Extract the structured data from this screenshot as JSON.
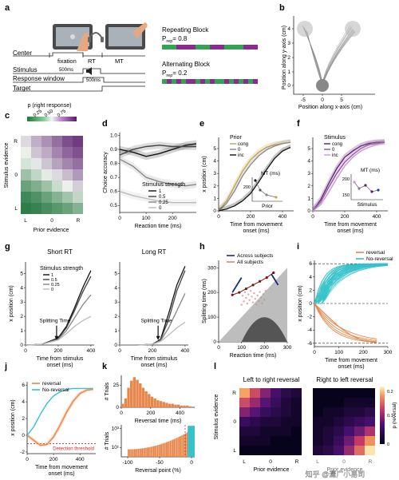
{
  "panel_letters": [
    "a",
    "b",
    "c",
    "d",
    "e",
    "f",
    "g",
    "h",
    "i",
    "j",
    "k",
    "l"
  ],
  "panel_a": {
    "rows": [
      "Center",
      "Stimulus",
      "Response window",
      "Target"
    ],
    "phases": [
      "fixation",
      "RT",
      "MT"
    ],
    "durations": [
      "500ms",
      "500ms"
    ],
    "repeating": {
      "title": "Repeating Block",
      "p": "P",
      "sub": "rep",
      "value": "= 0.8"
    },
    "alternating": {
      "title": "Alternating Block",
      "p": "P",
      "sub": "rep",
      "value": "= 0.2"
    }
  },
  "panel_b": {
    "ylabel": "Position along y-axis (cm)",
    "xlabel": "Position along x-axis (cm)",
    "xticks": [
      "-5",
      "0",
      "5"
    ],
    "yticks": [
      "0",
      "1",
      "2",
      "3",
      "4"
    ]
  },
  "panel_c": {
    "cbar_title": "p (right response)",
    "cbar_ticks": [
      "0.25",
      "0.50",
      "0.75"
    ],
    "ylabel": "Stimulus evidence",
    "xlabel": "Prior evidence",
    "yticks": [
      "R",
      "0",
      "L"
    ],
    "xticks": [
      "L",
      "0",
      "R"
    ]
  },
  "panel_d": {
    "ylabel": "Choice accuracy",
    "xlabel": "Reaction time (ms)",
    "yticks": [
      "0.5",
      "0.6",
      "0.7",
      "0.8",
      "0.9",
      "1.0"
    ],
    "xticks": [
      "0",
      "100",
      "200"
    ],
    "legend_title": "Stimulus strength",
    "legend": [
      "1",
      "0.5",
      "0.25",
      "0"
    ]
  },
  "panel_e": {
    "ylabel": "x position (cm)",
    "xlabel": "Time from movement onset (ms)",
    "yticks": [
      "0",
      "1",
      "2",
      "3",
      "4",
      "5"
    ],
    "xticks": [
      "0",
      "200",
      "400"
    ],
    "legend_title": "Prior",
    "legend": [
      "cong",
      "0",
      "inc"
    ],
    "inset_title": "MT (ms)",
    "inset_xlabel": "Prior",
    "inset_ytick": "200"
  },
  "panel_f": {
    "xlabel": "Time from movement onset (ms)",
    "yticks": [
      "0",
      "1",
      "2",
      "3",
      "4",
      "5"
    ],
    "xticks": [
      "0",
      "200",
      "400"
    ],
    "legend_title": "Stimulus",
    "legend": [
      "cong",
      "0",
      "inc"
    ],
    "inset_title": "MT (ms)",
    "inset_xlabel": "Stimulus",
    "inset_yticks": [
      "150",
      "200"
    ]
  },
  "panel_g": {
    "left_title": "Short RT",
    "right_title": "Long RT",
    "ylabel": "x position (cm)",
    "xlabel": "Time from stimulus onset (ms)",
    "yticks": [
      "0",
      "1",
      "2",
      "3",
      "4",
      "5"
    ],
    "xticks": [
      "0",
      "200",
      "400"
    ],
    "legend_title": "Stimulus strength",
    "legend": [
      "1",
      "0.5",
      "0.25",
      "0"
    ],
    "annotation": "Splitting Time"
  },
  "panel_h": {
    "ylabel": "Splitting time (ms)",
    "xlabel": "Reaction time (ms)",
    "yticks": [
      "0",
      "100",
      "200",
      "300"
    ],
    "xticks": [
      "0",
      "100",
      "200",
      "300"
    ],
    "legend": [
      "Across subjects",
      "All subjects"
    ]
  },
  "panel_i": {
    "ylabel": "x position (cm)",
    "xlabel": "Time from movement onset (ms)",
    "yticks": [
      "-6",
      "-4",
      "-2",
      "0",
      "2",
      "4",
      "6"
    ],
    "xticks": [
      "0",
      "100",
      "200",
      "300"
    ],
    "legend": [
      "reversal",
      "No-reversal"
    ]
  },
  "panel_j": {
    "ylabel": "x position (cm)",
    "xlabel": "Time from movement onset (ms)",
    "yticks": [
      "-2",
      "0",
      "2",
      "4",
      "6"
    ],
    "xticks": [
      "0",
      "200",
      "400"
    ],
    "legend": [
      "reversal",
      "No-reversal"
    ],
    "threshold": "Detection threshold"
  },
  "panel_k": {
    "top_ylabel": "# Trials",
    "top_xlabel": "Reversal time (ms)",
    "top_xticks": [
      "0",
      "200",
      "400"
    ],
    "top_yticks": [
      "0",
      "25"
    ],
    "bottom_ylabel": "# Trials",
    "bottom_xlabel": "Reversal point (%)",
    "bottom_xticks": [
      "-100",
      "-50",
      "0"
    ],
    "bottom_yticks": [
      "10¹",
      "10³"
    ]
  },
  "panel_l": {
    "left_title": "Left to right reversal",
    "right_title": "Right to left reversal",
    "ylabel": "Stimulus evidence",
    "xlabel": "Prior evidence",
    "yticks": [
      "R",
      "0",
      "L"
    ],
    "xticks": [
      "L",
      "0",
      "R"
    ],
    "cbar_label": "p (reversal)",
    "cbar_ticks": [
      "0",
      "0.1",
      "0.2"
    ]
  },
  "watermark": "知乎 @潇广小易司",
  "chart_data": [
    {
      "type": "heatmap",
      "title": "",
      "xlabel": "Prior evidence",
      "ylabel": "Stimulus evidence",
      "values": [
        [
          0.55,
          0.65,
          0.72,
          0.8,
          0.88,
          0.92
        ],
        [
          0.5,
          0.6,
          0.66,
          0.75,
          0.82,
          0.87
        ],
        [
          0.45,
          0.52,
          0.6,
          0.68,
          0.75,
          0.8
        ],
        [
          0.32,
          0.4,
          0.48,
          0.55,
          0.62,
          0.7
        ],
        [
          0.2,
          0.25,
          0.32,
          0.42,
          0.5,
          0.58
        ],
        [
          0.1,
          0.14,
          0.2,
          0.26,
          0.33,
          0.4
        ],
        [
          0.06,
          0.08,
          0.12,
          0.16,
          0.2,
          0.26
        ]
      ]
    },
    {
      "type": "line",
      "xlabel": "Reaction time (ms)",
      "ylabel": "Choice accuracy",
      "x": [
        0,
        50,
        100,
        150,
        200,
        250,
        290
      ],
      "series": [
        {
          "name": "1",
          "values": [
            0.9,
            0.88,
            0.85,
            0.87,
            0.9,
            0.93,
            0.94
          ]
        },
        {
          "name": "0.5",
          "values": [
            0.86,
            0.9,
            0.92,
            0.93,
            0.92,
            0.92,
            0.92
          ]
        },
        {
          "name": "0.25",
          "values": [
            0.83,
            0.78,
            0.7,
            0.67,
            0.65,
            0.64,
            0.65
          ]
        },
        {
          "name": "0",
          "values": [
            0.6,
            0.57,
            0.55,
            0.53,
            0.52,
            0.52,
            0.52
          ]
        }
      ]
    },
    {
      "type": "line",
      "xlabel": "Time from movement onset (ms)",
      "ylabel": "x position (cm)",
      "x": [
        0,
        50,
        100,
        150,
        200,
        250,
        300,
        350,
        400,
        450
      ],
      "series": [
        {
          "name": "cong",
          "values": [
            0,
            0.8,
            2.0,
            3.2,
            4.1,
            4.7,
            5.1,
            5.3,
            5.4,
            5.5
          ]
        },
        {
          "name": "0",
          "values": [
            0,
            0.6,
            1.6,
            2.8,
            3.7,
            4.4,
            4.9,
            5.2,
            5.4,
            5.5
          ]
        },
        {
          "name": "inc",
          "values": [
            0,
            0.15,
            0.4,
            0.8,
            1.4,
            2.3,
            3.3,
            4.2,
            4.8,
            5.1
          ]
        }
      ]
    },
    {
      "type": "line",
      "xlabel": "Time from movement onset (ms)",
      "ylabel": "x position (cm)",
      "x": [
        0,
        50,
        100,
        150,
        200,
        250,
        300,
        350,
        400,
        450
      ],
      "series": [
        {
          "name": "cong",
          "values": [
            0,
            0.9,
            2.2,
            3.4,
            4.3,
            4.8,
            5.2,
            5.4,
            5.5,
            5.5
          ]
        },
        {
          "name": "0",
          "values": [
            0,
            0.7,
            1.9,
            3.0,
            3.9,
            4.5,
            5.0,
            5.3,
            5.4,
            5.5
          ]
        },
        {
          "name": "inc",
          "values": [
            0,
            0.5,
            1.5,
            2.6,
            3.6,
            4.3,
            4.8,
            5.1,
            5.3,
            5.4
          ]
        }
      ]
    },
    {
      "type": "line",
      "title": "Short RT",
      "xlabel": "Time from stimulus onset (ms)",
      "ylabel": "x position (cm)",
      "x": [
        0,
        100,
        200,
        250,
        300,
        350,
        400
      ],
      "series": [
        {
          "name": "1",
          "values": [
            0,
            0.05,
            0.5,
            1.3,
            2.6,
            4.0,
            5.2
          ]
        },
        {
          "name": "0.5",
          "values": [
            0,
            0.05,
            0.45,
            1.2,
            2.4,
            3.7,
            4.8
          ]
        },
        {
          "name": "0.25",
          "values": [
            0,
            0.05,
            0.4,
            1.0,
            1.9,
            2.8,
            3.5
          ]
        },
        {
          "name": "0",
          "values": [
            0,
            0.05,
            0.35,
            0.8,
            1.3,
            1.7,
            2.0
          ]
        }
      ]
    },
    {
      "type": "line",
      "title": "Long RT",
      "xlabel": "Time from stimulus onset (ms)",
      "ylabel": "x position (cm)",
      "x": [
        0,
        100,
        200,
        250,
        300,
        350,
        400
      ],
      "series": [
        {
          "name": "1",
          "values": [
            0,
            0,
            0.05,
            0.4,
            2.2,
            4.2,
            5.5
          ]
        },
        {
          "name": "0.5",
          "values": [
            0,
            0,
            0.05,
            0.35,
            1.8,
            3.8,
            5.2
          ]
        },
        {
          "name": "0.25",
          "values": [
            0,
            0,
            0.05,
            0.3,
            1.2,
            2.4,
            3.6
          ]
        },
        {
          "name": "0",
          "values": [
            0,
            0,
            0.05,
            0.25,
            0.7,
            1.2,
            1.6
          ]
        }
      ]
    },
    {
      "type": "scatter",
      "xlabel": "Reaction time (ms)",
      "ylabel": "Splitting time (ms)",
      "x": [
        60,
        90,
        120,
        150,
        180,
        210,
        240
      ],
      "series": [
        {
          "name": "Across subjects",
          "values": [
            190,
            200,
            215,
            230,
            245,
            260,
            280
          ]
        }
      ]
    },
    {
      "type": "line",
      "xlabel": "Time from movement onset (ms)",
      "ylabel": "x position (cm)",
      "x": [
        0,
        50,
        100,
        150,
        200,
        250
      ],
      "series": [
        {
          "name": "reversal",
          "values": [
            0,
            -1.8,
            -3.5,
            -4.8,
            -5.6,
            -5.9
          ]
        },
        {
          "name": "No-reversal",
          "values": [
            0,
            2.0,
            4.5,
            5.5,
            5.8,
            5.9
          ]
        }
      ]
    },
    {
      "type": "line",
      "xlabel": "Time from movement onset (ms)",
      "ylabel": "x position (cm)",
      "x": [
        0,
        50,
        100,
        150,
        200,
        250,
        300,
        350,
        400,
        450,
        500
      ],
      "series": [
        {
          "name": "reversal",
          "values": [
            0,
            -0.6,
            -1.2,
            -1.1,
            -0.2,
            1.2,
            2.8,
            4.1,
            5.0,
            5.4,
            5.5
          ]
        },
        {
          "name": "No-reversal",
          "values": [
            0,
            1.0,
            2.5,
            3.8,
            4.7,
            5.2,
            5.5,
            5.6,
            5.6,
            5.6,
            5.6
          ]
        }
      ]
    },
    {
      "type": "bar",
      "xlabel": "Reversal time (ms)",
      "ylabel": "# Trials",
      "categories": [
        "20",
        "40",
        "60",
        "80",
        "100",
        "120",
        "140",
        "160",
        "180",
        "200",
        "220",
        "240",
        "260",
        "280",
        "300",
        "320",
        "340",
        "360",
        "380",
        "400",
        "420",
        "440",
        "460",
        "480"
      ],
      "values": [
        4,
        10,
        22,
        30,
        34,
        31,
        27,
        22,
        18,
        15,
        12,
        10,
        8,
        7,
        6,
        5,
        4,
        4,
        3,
        3,
        2,
        2,
        2,
        1
      ]
    },
    {
      "type": "heatmap",
      "title": "Left to right reversal",
      "xlabel": "Prior evidence",
      "ylabel": "Stimulus evidence",
      "values": [
        [
          0.17,
          0.12,
          0.08,
          0.05,
          0.03,
          0.02
        ],
        [
          0.12,
          0.09,
          0.06,
          0.04,
          0.02,
          0.01
        ],
        [
          0.08,
          0.06,
          0.04,
          0.03,
          0.02,
          0.01
        ],
        [
          0.04,
          0.03,
          0.02,
          0.02,
          0.01,
          0.01
        ],
        [
          0.02,
          0.02,
          0.01,
          0.01,
          0.01,
          0.0
        ],
        [
          0.01,
          0.01,
          0.01,
          0.0,
          0.0,
          0.0
        ],
        [
          0.0,
          0.0,
          0.0,
          0.0,
          0.0,
          0.0
        ]
      ]
    },
    {
      "type": "heatmap",
      "title": "Right to left reversal",
      "xlabel": "Prior evidence",
      "ylabel": "Stimulus evidence",
      "values": [
        [
          0.0,
          0.0,
          0.0,
          0.0,
          0.0,
          0.0
        ],
        [
          0.0,
          0.0,
          0.0,
          0.01,
          0.01,
          0.01
        ],
        [
          0.0,
          0.01,
          0.01,
          0.02,
          0.02,
          0.03
        ],
        [
          0.01,
          0.01,
          0.02,
          0.03,
          0.04,
          0.05
        ],
        [
          0.01,
          0.02,
          0.03,
          0.05,
          0.07,
          0.1
        ],
        [
          0.01,
          0.02,
          0.04,
          0.07,
          0.11,
          0.16
        ],
        [
          0.02,
          0.03,
          0.05,
          0.09,
          0.14,
          0.21
        ]
      ]
    }
  ]
}
